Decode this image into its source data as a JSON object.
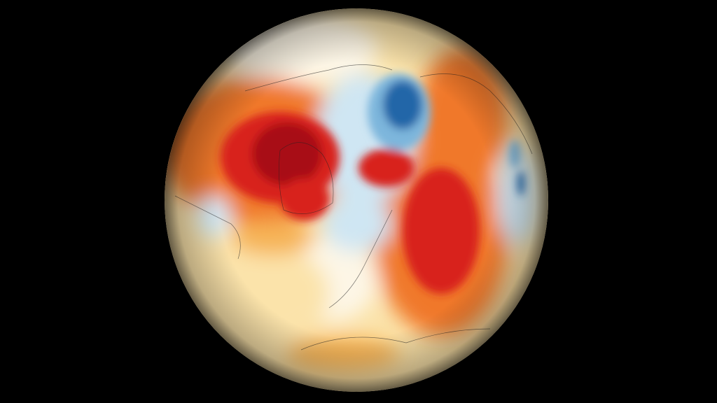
{
  "map": {
    "type": "orthographic-globe",
    "view": "northern-hemisphere",
    "background_color": "#000000",
    "palette": {
      "extreme_warm": "#a80c14",
      "strong_warm": "#d8201c",
      "warm": "#f0782a",
      "mild_warm": "#f6b456",
      "slight_warm": "#fbe3aa",
      "neutral": "#fdf6e6",
      "slight_cool": "#cfe6f3",
      "cool": "#7db6dc",
      "strong_cool": "#2466a8"
    }
  }
}
